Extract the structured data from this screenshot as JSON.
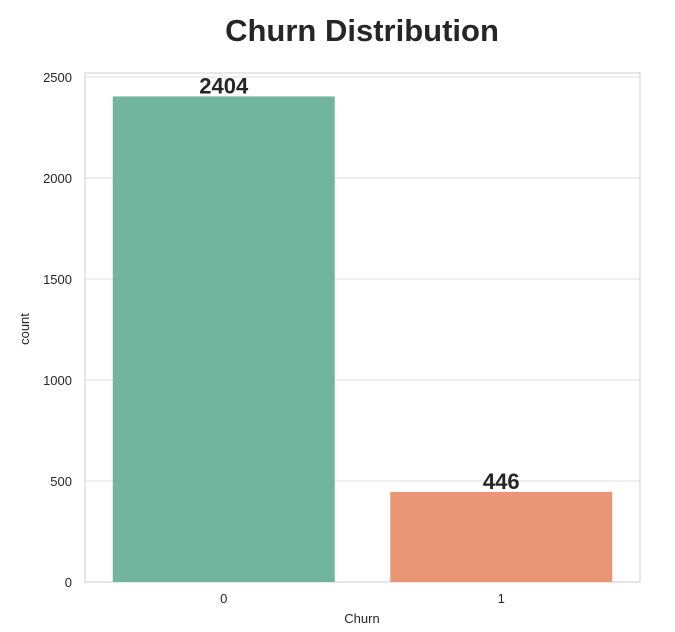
{
  "chart_data": {
    "type": "bar",
    "title": "Churn Distribution",
    "xlabel": "Churn",
    "ylabel": "count",
    "categories": [
      "0",
      "1"
    ],
    "values": [
      2404,
      446
    ],
    "data_labels": [
      "2404",
      "446"
    ],
    "colors": [
      "#72b59f",
      "#e89675"
    ],
    "ylim": [
      0,
      2520
    ],
    "yticks": [
      0,
      500,
      1000,
      1500,
      2000,
      2500
    ],
    "ytick_labels": [
      "0",
      "500",
      "1000",
      "1500",
      "2000",
      "2500"
    ],
    "grid": true,
    "legend": false
  }
}
